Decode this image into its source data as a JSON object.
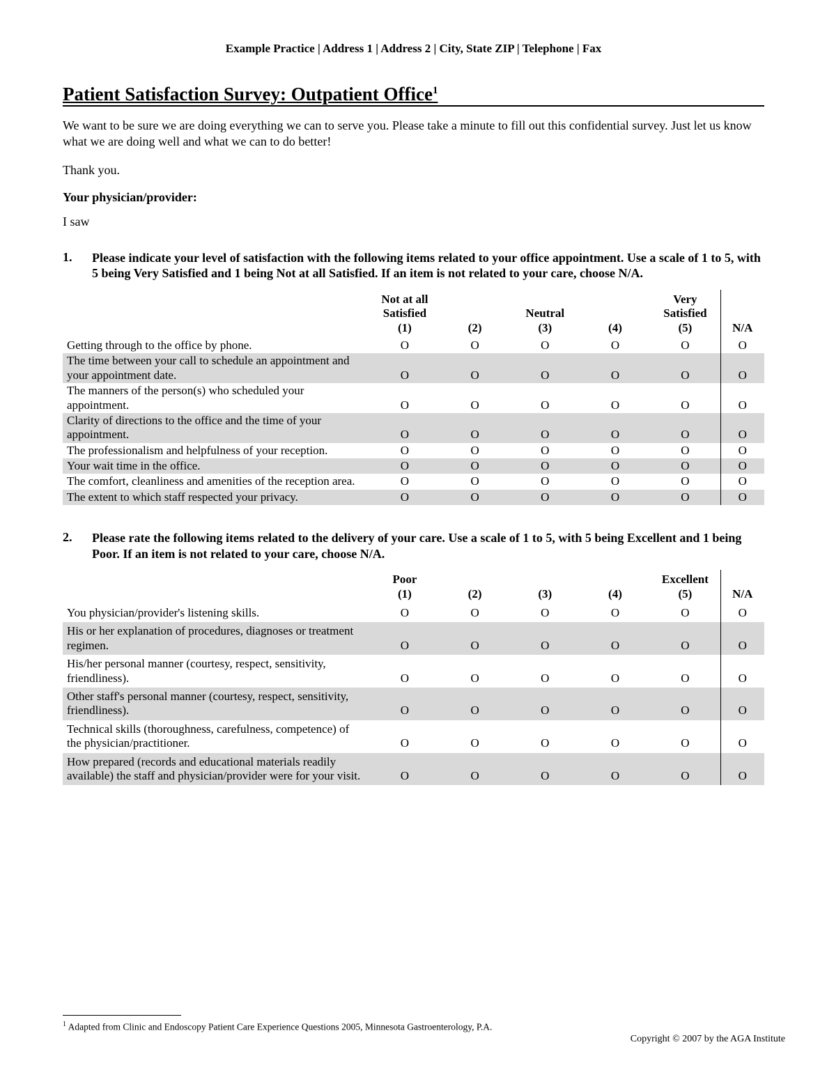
{
  "header_line": "Example Practice | Address 1 | Address 2 | City, State ZIP | Telephone | Fax",
  "title": "Patient Satisfaction Survey: Outpatient Office",
  "title_footnote_mark": "1",
  "intro": "We want to be sure we are doing everything we can to serve you. Please take a minute to fill out this confidential survey. Just let us know what we are doing well and what we can to do better!",
  "thanks": "Thank you.",
  "physician_label": "Your physician/provider:",
  "isaw": "I saw",
  "q1": {
    "num": "1.",
    "text": "Please indicate your level of satisfaction with the following items related to your office appointment. Use a scale of 1 to 5, with 5 being Very Satisfied and 1 being Not at all Satisfied. If an item is not related to your care, choose N/A.",
    "headers": {
      "c1a": "Not at all",
      "c1b": "Satisfied",
      "c1c": "(1)",
      "c2": "(2)",
      "c3a": "Neutral",
      "c3b": "(3)",
      "c4": "(4)",
      "c5a": "Very",
      "c5b": "Satisfied",
      "c5c": "(5)",
      "na": "N/A"
    },
    "rows": [
      {
        "label": "Getting through to the office by phone.",
        "shaded": false
      },
      {
        "label": "The time between your call to schedule an appointment and your appointment date.",
        "shaded": true
      },
      {
        "label": "The manners of the person(s) who scheduled your appointment.",
        "shaded": false
      },
      {
        "label": "Clarity of directions to the office and the time of your appointment.",
        "shaded": true
      },
      {
        "label": "The professionalism and helpfulness of your reception.",
        "shaded": false
      },
      {
        "label": "Your wait time in the office.",
        "shaded": true
      },
      {
        "label": "The comfort, cleanliness and amenities of the reception area.",
        "shaded": false
      },
      {
        "label": "The extent to which staff respected your privacy.",
        "shaded": true
      }
    ]
  },
  "q2": {
    "num": "2.",
    "text": "Please rate the following items related to the delivery of your care. Use a scale of 1 to 5, with 5 being Excellent and 1 being Poor. If an item is not related to your care, choose N/A.",
    "headers": {
      "c1a": "Poor",
      "c1b": "(1)",
      "c2": "(2)",
      "c3": "(3)",
      "c4": "(4)",
      "c5a": "Excellent",
      "c5b": "(5)",
      "na": "N/A"
    },
    "rows": [
      {
        "label": "You physician/provider's listening skills.",
        "shaded": false
      },
      {
        "label": "His or her explanation of procedures, diagnoses or treatment regimen.",
        "shaded": true
      },
      {
        "label": "His/her personal manner (courtesy, respect, sensitivity, friendliness).",
        "shaded": false
      },
      {
        "label": "Other staff's personal manner (courtesy, respect, sensitivity, friendliness).",
        "shaded": true
      },
      {
        "label": "Technical skills (thoroughness, carefulness, competence) of the physician/practitioner.",
        "shaded": false
      },
      {
        "label": "How prepared (records and educational materials readily available) the staff and physician/provider were for your visit.",
        "shaded": true
      }
    ]
  },
  "option_glyph": "O",
  "footnote": "Adapted from Clinic and Endoscopy Patient Care Experience Questions 2005, Minnesota Gastroenterology, P.A.",
  "footnote_mark": "1",
  "copyright": "Copyright © 2007 by the AGA Institute",
  "colors": {
    "text": "#000000",
    "background": "#ffffff",
    "shaded_row": "#d9d9d9"
  }
}
